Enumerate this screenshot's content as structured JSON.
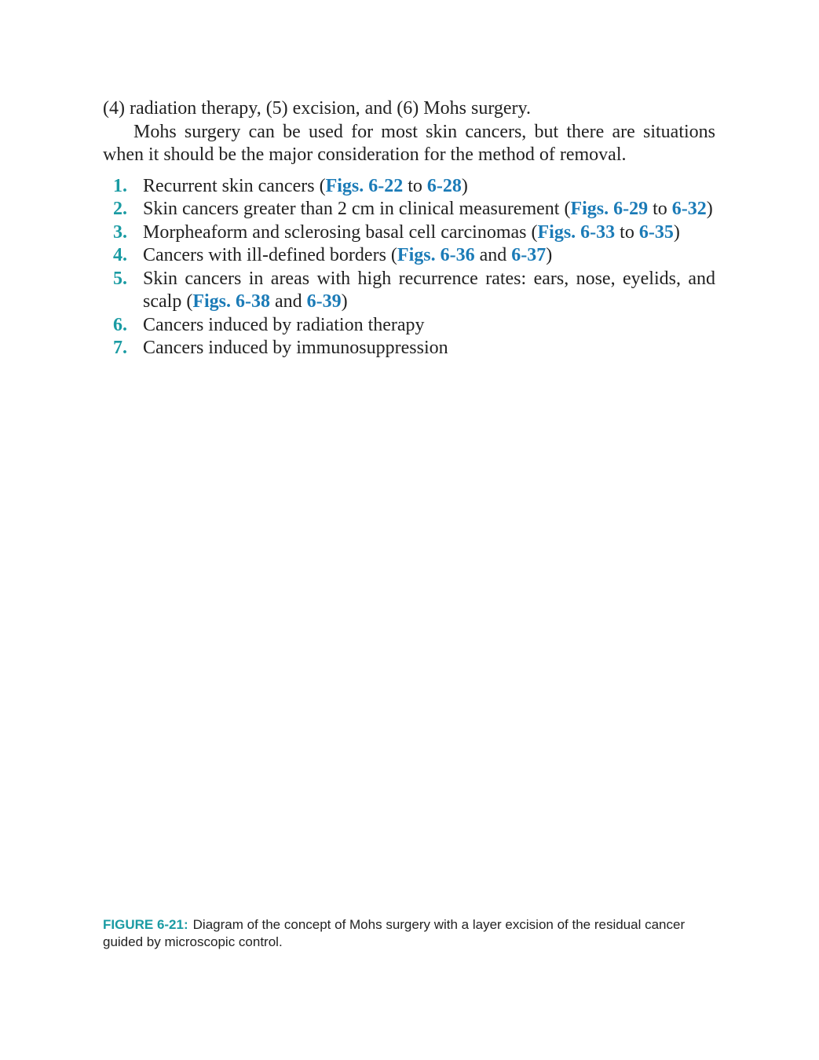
{
  "paragraphs": [
    "(4) radiation therapy, (5) excision, and (6) Mohs surgery.",
    "Mohs surgery can be used for most skin cancers, but there are situations when it should be the major consideration for the method of removal."
  ],
  "list": [
    {
      "number": "1.",
      "text": [
        "Recurrent skin cancers (",
        "Figs. 6-22",
        " to ",
        "6-28",
        ")"
      ]
    },
    {
      "number": "2.",
      "text": [
        "Skin cancers greater than 2 cm in clinical measurement (",
        "Figs. 6-29",
        " to ",
        "6-32",
        ")"
      ]
    },
    {
      "number": "3.",
      "text": [
        "Morpheaform and sclerosing basal cell carcinomas (",
        "Figs. 6-33",
        " to ",
        "6-35",
        ")"
      ]
    },
    {
      "number": "4.",
      "text": [
        "Cancers with ill-defined borders (",
        "Figs. 6-36",
        " and ",
        "6-37",
        ")"
      ]
    },
    {
      "number": "5.",
      "text": [
        "Skin cancers in areas with high recurrence rates: ears, nose, eyelids, and scalp (",
        "Figs. 6-38",
        " and ",
        "6-39",
        ")"
      ]
    },
    {
      "number": "6.",
      "text": [
        "Cancers induced by radiation therapy"
      ]
    },
    {
      "number": "7.",
      "text": [
        "Cancers induced by immunosuppression"
      ]
    }
  ],
  "caption": {
    "label": "FIGURE 6-21:",
    "text": "Diagram of the concept of Mohs surgery with a layer excision of the residual cancer guided by microscopic control."
  }
}
